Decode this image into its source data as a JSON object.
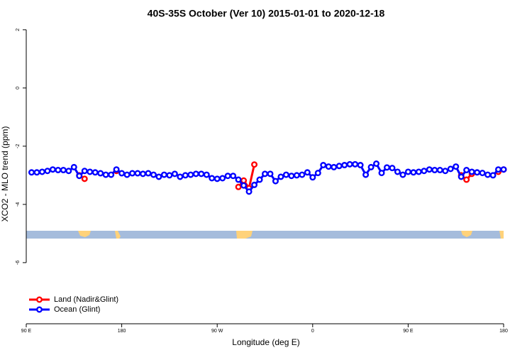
{
  "chart_data": {
    "type": "line",
    "title": "40S-35S October (Ver 10)   2015-01-01 to 2020-12-18",
    "xlabel": "Longitude (deg E)",
    "ylabel": "XCO2 - MLO trend (ppm)",
    "xlim": [
      90,
      540
    ],
    "ylim": [
      -8.1,
      2.2
    ],
    "xticks": [
      {
        "value": 90,
        "label": "90 E"
      },
      180,
      {
        "value": 270,
        "label": "90 W"
      },
      {
        "value": 360,
        "label": "0"
      },
      {
        "value": 450,
        "label": "90 E"
      },
      {
        "value": 540,
        "label": "180"
      }
    ],
    "yticks": [
      -6,
      -4,
      -2,
      0,
      2
    ],
    "legend": "bottom-left",
    "series": [
      {
        "name": "Land (Nadir&Glint)",
        "color": "#ff0000",
        "x": [
          140,
          145,
          150,
          175,
          180,
          290,
          295,
          300,
          305,
          310,
          500,
          505,
          510,
          515,
          535,
          540
        ],
        "values": [
          -3.0,
          -3.12,
          null,
          -2.85,
          null,
          -3.4,
          -3.18,
          -3.44,
          -2.63,
          null,
          -3.0,
          -3.15,
          -2.95,
          null,
          -2.88,
          -2.8
        ]
      },
      {
        "name": "Ocean (Glint)",
        "color": "#0000ff",
        "x": [
          95,
          100,
          105,
          110,
          115,
          120,
          125,
          130,
          135,
          140,
          145,
          150,
          155,
          160,
          165,
          170,
          175,
          180,
          185,
          190,
          195,
          200,
          205,
          210,
          215,
          220,
          225,
          230,
          235,
          240,
          245,
          250,
          255,
          260,
          265,
          270,
          275,
          280,
          285,
          290,
          295,
          300,
          305,
          310,
          315,
          320,
          325,
          330,
          335,
          340,
          345,
          350,
          355,
          360,
          365,
          370,
          375,
          380,
          385,
          390,
          395,
          400,
          405,
          410,
          415,
          420,
          425,
          430,
          435,
          440,
          445,
          450,
          455,
          460,
          465,
          470,
          475,
          480,
          485,
          490,
          495,
          500,
          505,
          510,
          515,
          520,
          525,
          530,
          535,
          540
        ],
        "values": [
          -2.9,
          -2.9,
          -2.88,
          -2.85,
          -2.8,
          -2.82,
          -2.82,
          -2.85,
          -2.72,
          -3.02,
          -2.85,
          -2.88,
          -2.9,
          -2.93,
          -2.98,
          -2.98,
          -2.8,
          -2.93,
          -2.98,
          -2.93,
          -2.93,
          -2.95,
          -2.93,
          -2.98,
          -3.05,
          -2.98,
          -3.0,
          -2.95,
          -3.05,
          -3.0,
          -2.98,
          -2.95,
          -2.95,
          -2.98,
          -3.1,
          -3.12,
          -3.1,
          -3.02,
          -3.02,
          -3.15,
          -3.35,
          -3.56,
          -3.33,
          -3.15,
          -2.95,
          -2.95,
          -3.2,
          -3.05,
          -2.98,
          -3.02,
          -3.0,
          -2.98,
          -2.9,
          -3.07,
          -2.92,
          -2.65,
          -2.7,
          -2.72,
          -2.68,
          -2.65,
          -2.62,
          -2.62,
          -2.65,
          -2.98,
          -2.72,
          -2.6,
          -2.92,
          -2.73,
          -2.75,
          -2.88,
          -2.98,
          -2.88,
          -2.9,
          -2.88,
          -2.85,
          -2.8,
          -2.82,
          -2.82,
          -2.85,
          -2.78,
          -2.7,
          -3.05,
          -2.82,
          -2.88,
          -2.9,
          -2.92,
          -2.98,
          -3.0,
          -2.8,
          -2.8
        ]
      }
    ]
  }
}
